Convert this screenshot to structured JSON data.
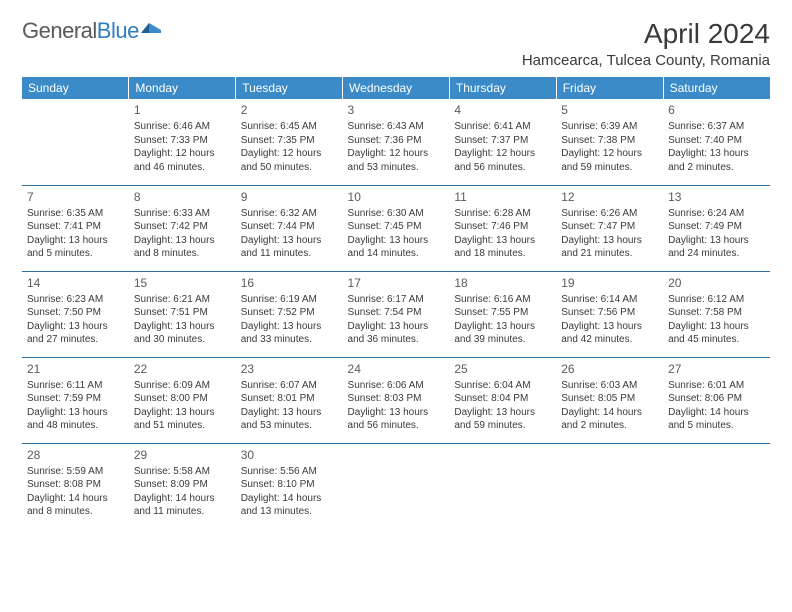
{
  "logo": {
    "part1": "General",
    "part2": "Blue"
  },
  "title": "April 2024",
  "location": "Hamcearca, Tulcea County, Romania",
  "day_headers": [
    "Sunday",
    "Monday",
    "Tuesday",
    "Wednesday",
    "Thursday",
    "Friday",
    "Saturday"
  ],
  "colors": {
    "header_bg": "#3b8bc8",
    "row_border": "#2f6fa8",
    "text": "#3a3a3a",
    "page_bg": "#ffffff"
  },
  "typography": {
    "body_fontsize": 10,
    "daynum_fontsize": 12,
    "th_fontsize": 12,
    "title_fontsize": 28,
    "location_fontsize": 15
  },
  "weeks": [
    [
      null,
      {
        "n": "1",
        "sr": "Sunrise: 6:46 AM",
        "ss": "Sunset: 7:33 PM",
        "d1": "Daylight: 12 hours",
        "d2": "and 46 minutes."
      },
      {
        "n": "2",
        "sr": "Sunrise: 6:45 AM",
        "ss": "Sunset: 7:35 PM",
        "d1": "Daylight: 12 hours",
        "d2": "and 50 minutes."
      },
      {
        "n": "3",
        "sr": "Sunrise: 6:43 AM",
        "ss": "Sunset: 7:36 PM",
        "d1": "Daylight: 12 hours",
        "d2": "and 53 minutes."
      },
      {
        "n": "4",
        "sr": "Sunrise: 6:41 AM",
        "ss": "Sunset: 7:37 PM",
        "d1": "Daylight: 12 hours",
        "d2": "and 56 minutes."
      },
      {
        "n": "5",
        "sr": "Sunrise: 6:39 AM",
        "ss": "Sunset: 7:38 PM",
        "d1": "Daylight: 12 hours",
        "d2": "and 59 minutes."
      },
      {
        "n": "6",
        "sr": "Sunrise: 6:37 AM",
        "ss": "Sunset: 7:40 PM",
        "d1": "Daylight: 13 hours",
        "d2": "and 2 minutes."
      }
    ],
    [
      {
        "n": "7",
        "sr": "Sunrise: 6:35 AM",
        "ss": "Sunset: 7:41 PM",
        "d1": "Daylight: 13 hours",
        "d2": "and 5 minutes."
      },
      {
        "n": "8",
        "sr": "Sunrise: 6:33 AM",
        "ss": "Sunset: 7:42 PM",
        "d1": "Daylight: 13 hours",
        "d2": "and 8 minutes."
      },
      {
        "n": "9",
        "sr": "Sunrise: 6:32 AM",
        "ss": "Sunset: 7:44 PM",
        "d1": "Daylight: 13 hours",
        "d2": "and 11 minutes."
      },
      {
        "n": "10",
        "sr": "Sunrise: 6:30 AM",
        "ss": "Sunset: 7:45 PM",
        "d1": "Daylight: 13 hours",
        "d2": "and 14 minutes."
      },
      {
        "n": "11",
        "sr": "Sunrise: 6:28 AM",
        "ss": "Sunset: 7:46 PM",
        "d1": "Daylight: 13 hours",
        "d2": "and 18 minutes."
      },
      {
        "n": "12",
        "sr": "Sunrise: 6:26 AM",
        "ss": "Sunset: 7:47 PM",
        "d1": "Daylight: 13 hours",
        "d2": "and 21 minutes."
      },
      {
        "n": "13",
        "sr": "Sunrise: 6:24 AM",
        "ss": "Sunset: 7:49 PM",
        "d1": "Daylight: 13 hours",
        "d2": "and 24 minutes."
      }
    ],
    [
      {
        "n": "14",
        "sr": "Sunrise: 6:23 AM",
        "ss": "Sunset: 7:50 PM",
        "d1": "Daylight: 13 hours",
        "d2": "and 27 minutes."
      },
      {
        "n": "15",
        "sr": "Sunrise: 6:21 AM",
        "ss": "Sunset: 7:51 PM",
        "d1": "Daylight: 13 hours",
        "d2": "and 30 minutes."
      },
      {
        "n": "16",
        "sr": "Sunrise: 6:19 AM",
        "ss": "Sunset: 7:52 PM",
        "d1": "Daylight: 13 hours",
        "d2": "and 33 minutes."
      },
      {
        "n": "17",
        "sr": "Sunrise: 6:17 AM",
        "ss": "Sunset: 7:54 PM",
        "d1": "Daylight: 13 hours",
        "d2": "and 36 minutes."
      },
      {
        "n": "18",
        "sr": "Sunrise: 6:16 AM",
        "ss": "Sunset: 7:55 PM",
        "d1": "Daylight: 13 hours",
        "d2": "and 39 minutes."
      },
      {
        "n": "19",
        "sr": "Sunrise: 6:14 AM",
        "ss": "Sunset: 7:56 PM",
        "d1": "Daylight: 13 hours",
        "d2": "and 42 minutes."
      },
      {
        "n": "20",
        "sr": "Sunrise: 6:12 AM",
        "ss": "Sunset: 7:58 PM",
        "d1": "Daylight: 13 hours",
        "d2": "and 45 minutes."
      }
    ],
    [
      {
        "n": "21",
        "sr": "Sunrise: 6:11 AM",
        "ss": "Sunset: 7:59 PM",
        "d1": "Daylight: 13 hours",
        "d2": "and 48 minutes."
      },
      {
        "n": "22",
        "sr": "Sunrise: 6:09 AM",
        "ss": "Sunset: 8:00 PM",
        "d1": "Daylight: 13 hours",
        "d2": "and 51 minutes."
      },
      {
        "n": "23",
        "sr": "Sunrise: 6:07 AM",
        "ss": "Sunset: 8:01 PM",
        "d1": "Daylight: 13 hours",
        "d2": "and 53 minutes."
      },
      {
        "n": "24",
        "sr": "Sunrise: 6:06 AM",
        "ss": "Sunset: 8:03 PM",
        "d1": "Daylight: 13 hours",
        "d2": "and 56 minutes."
      },
      {
        "n": "25",
        "sr": "Sunrise: 6:04 AM",
        "ss": "Sunset: 8:04 PM",
        "d1": "Daylight: 13 hours",
        "d2": "and 59 minutes."
      },
      {
        "n": "26",
        "sr": "Sunrise: 6:03 AM",
        "ss": "Sunset: 8:05 PM",
        "d1": "Daylight: 14 hours",
        "d2": "and 2 minutes."
      },
      {
        "n": "27",
        "sr": "Sunrise: 6:01 AM",
        "ss": "Sunset: 8:06 PM",
        "d1": "Daylight: 14 hours",
        "d2": "and 5 minutes."
      }
    ],
    [
      {
        "n": "28",
        "sr": "Sunrise: 5:59 AM",
        "ss": "Sunset: 8:08 PM",
        "d1": "Daylight: 14 hours",
        "d2": "and 8 minutes."
      },
      {
        "n": "29",
        "sr": "Sunrise: 5:58 AM",
        "ss": "Sunset: 8:09 PM",
        "d1": "Daylight: 14 hours",
        "d2": "and 11 minutes."
      },
      {
        "n": "30",
        "sr": "Sunrise: 5:56 AM",
        "ss": "Sunset: 8:10 PM",
        "d1": "Daylight: 14 hours",
        "d2": "and 13 minutes."
      },
      null,
      null,
      null,
      null
    ]
  ]
}
